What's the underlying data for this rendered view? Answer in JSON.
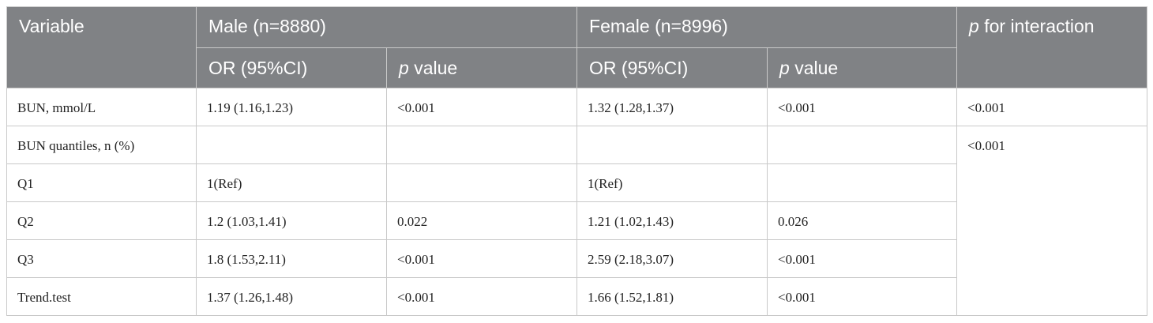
{
  "table": {
    "header": {
      "variable": "Variable",
      "male": "Male (n=8880)",
      "female": "Female (n=8996)",
      "interaction": {
        "em": "p",
        "text": "for interaction"
      },
      "sub": [
        "OR (95%CI)",
        {
          "em": "p",
          "text": "value"
        },
        "OR (95%CI)",
        {
          "em": "p",
          "text": "value"
        }
      ]
    },
    "rows": [
      [
        "BUN, mmol/L",
        "1.19 (1.16,1.23)",
        "<0.001",
        "1.32 (1.28,1.37)",
        "<0.001",
        "<0.001"
      ],
      [
        "BUN quantiles, n (%)",
        null,
        null,
        null,
        null,
        "<0.001"
      ],
      [
        "Q1",
        "1(Ref)",
        null,
        "1(Ref)",
        null
      ],
      [
        "Q2",
        "1.2 (1.03,1.41)",
        "0.022",
        "1.21 (1.02,1.43)",
        "0.026"
      ],
      [
        "Q3",
        "1.8 (1.53,2.11)",
        "<0.001",
        "2.59 (2.18,3.07)",
        "<0.001"
      ],
      [
        "Trend.test",
        "1.37 (1.26,1.48)",
        "<0.001",
        "1.66 (1.52,1.81)",
        "<0.001"
      ]
    ]
  }
}
